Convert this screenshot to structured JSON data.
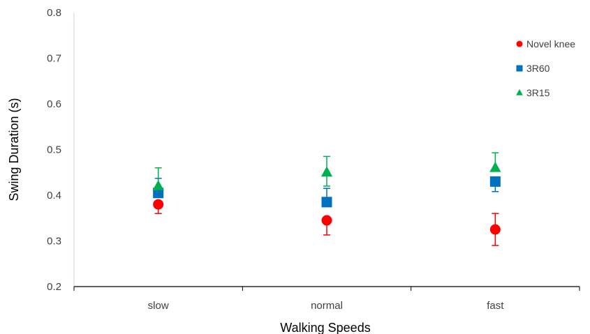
{
  "chart_data": {
    "type": "scatter",
    "title": "",
    "xlabel": "Walking Speeds",
    "ylabel": "Swing Duration (s)",
    "categories": [
      "slow",
      "normal",
      "fast"
    ],
    "ylim": [
      0.2,
      0.8
    ],
    "yticks": [
      "0.2",
      "0.3",
      "0.4",
      "0.5",
      "0.6",
      "0.7",
      "0.8"
    ],
    "grid": false,
    "legend_position": "top-right",
    "series": [
      {
        "name": "Novel knee",
        "marker": "circle",
        "color": "#ff0000",
        "values": [
          0.38,
          0.345,
          0.325
        ],
        "err_low": [
          0.02,
          0.032,
          0.035
        ],
        "err_high": [
          0.0,
          0.0,
          0.035
        ]
      },
      {
        "name": "3R60",
        "marker": "square",
        "color": "#0070c0",
        "values": [
          0.405,
          0.385,
          0.43
        ],
        "err_low": [
          0.0,
          0.0,
          0.022
        ],
        "err_high": [
          0.032,
          0.03,
          0.0
        ]
      },
      {
        "name": "3R15",
        "marker": "triangle",
        "color": "#00b050",
        "values": [
          0.42,
          0.45,
          0.46
        ],
        "err_low": [
          0.0,
          0.03,
          0.0
        ],
        "err_high": [
          0.04,
          0.035,
          0.033
        ]
      }
    ]
  }
}
